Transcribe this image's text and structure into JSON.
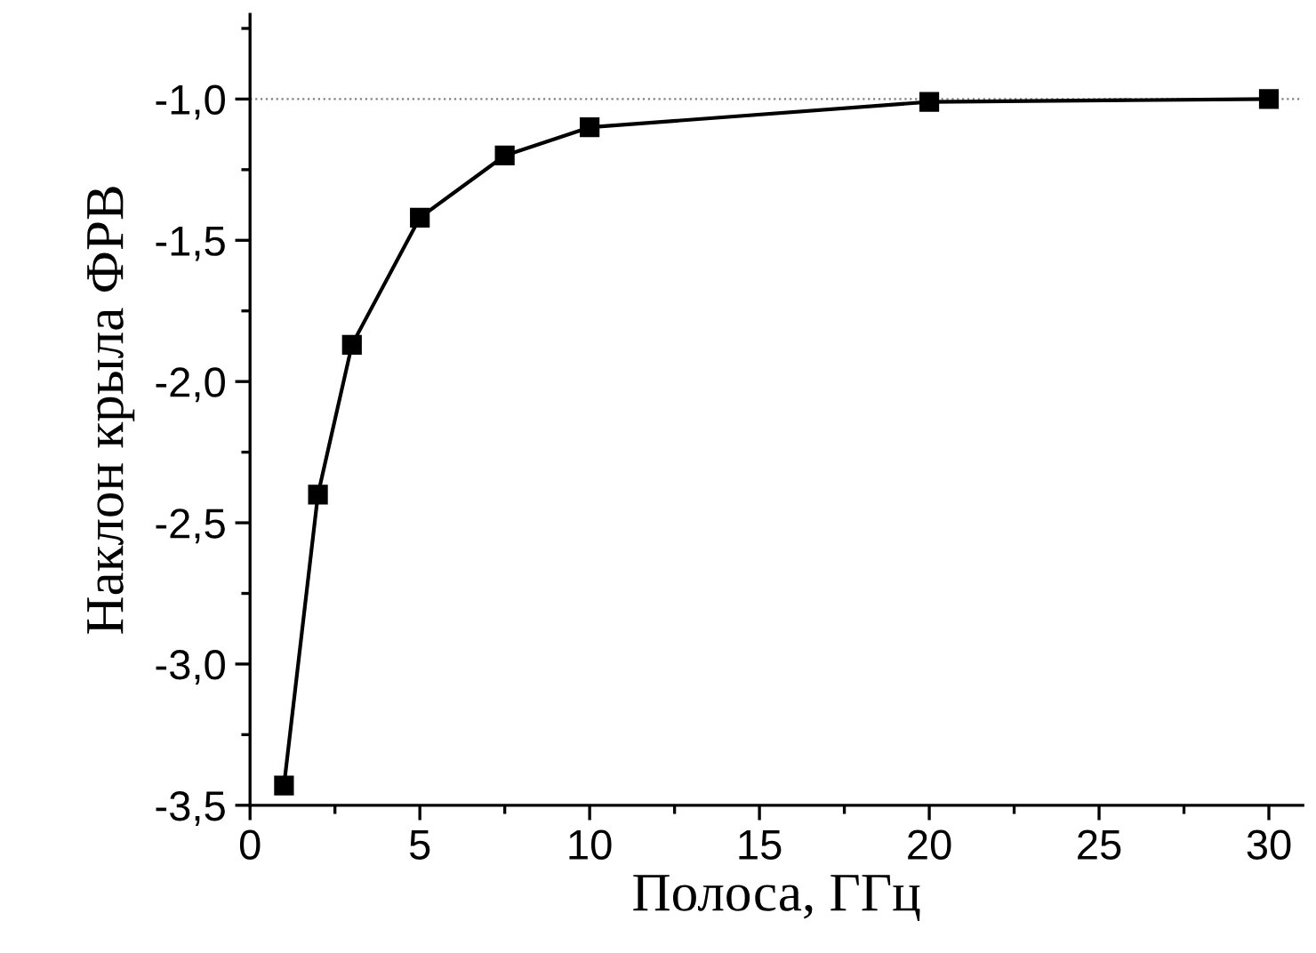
{
  "chart_data": {
    "type": "line",
    "xlabel": "Полоса, ГГц",
    "ylabel": "Наклон крыла ФРВ",
    "x": [
      1,
      2,
      3,
      5,
      7.5,
      10,
      20,
      30
    ],
    "series": [
      {
        "color": "#000000",
        "values": [
          -3.43,
          -2.4,
          -1.87,
          -1.42,
          -1.2,
          -1.1,
          -1.01,
          -1.0
        ]
      }
    ],
    "marker": "square",
    "line_style": "solid",
    "xlim": [
      0,
      31
    ],
    "xticks": [
      0,
      5,
      10,
      15,
      20,
      25,
      30
    ],
    "ylim": [
      -3.5,
      -0.7
    ],
    "yticks": [
      {
        "value": -3.5,
        "label": "-3,5"
      },
      {
        "value": -3.0,
        "label": "-3,0"
      },
      {
        "value": -2.5,
        "label": "-2,5"
      },
      {
        "value": -2.0,
        "label": "-2,0"
      },
      {
        "value": -1.5,
        "label": "-1,5"
      },
      {
        "value": -1.0,
        "label": "-1,0"
      }
    ],
    "ref_lines": [
      {
        "axis": "y",
        "value": -1.0,
        "color": "#808080",
        "line_style": "dotted"
      }
    ],
    "grid": false,
    "legend": false
  }
}
